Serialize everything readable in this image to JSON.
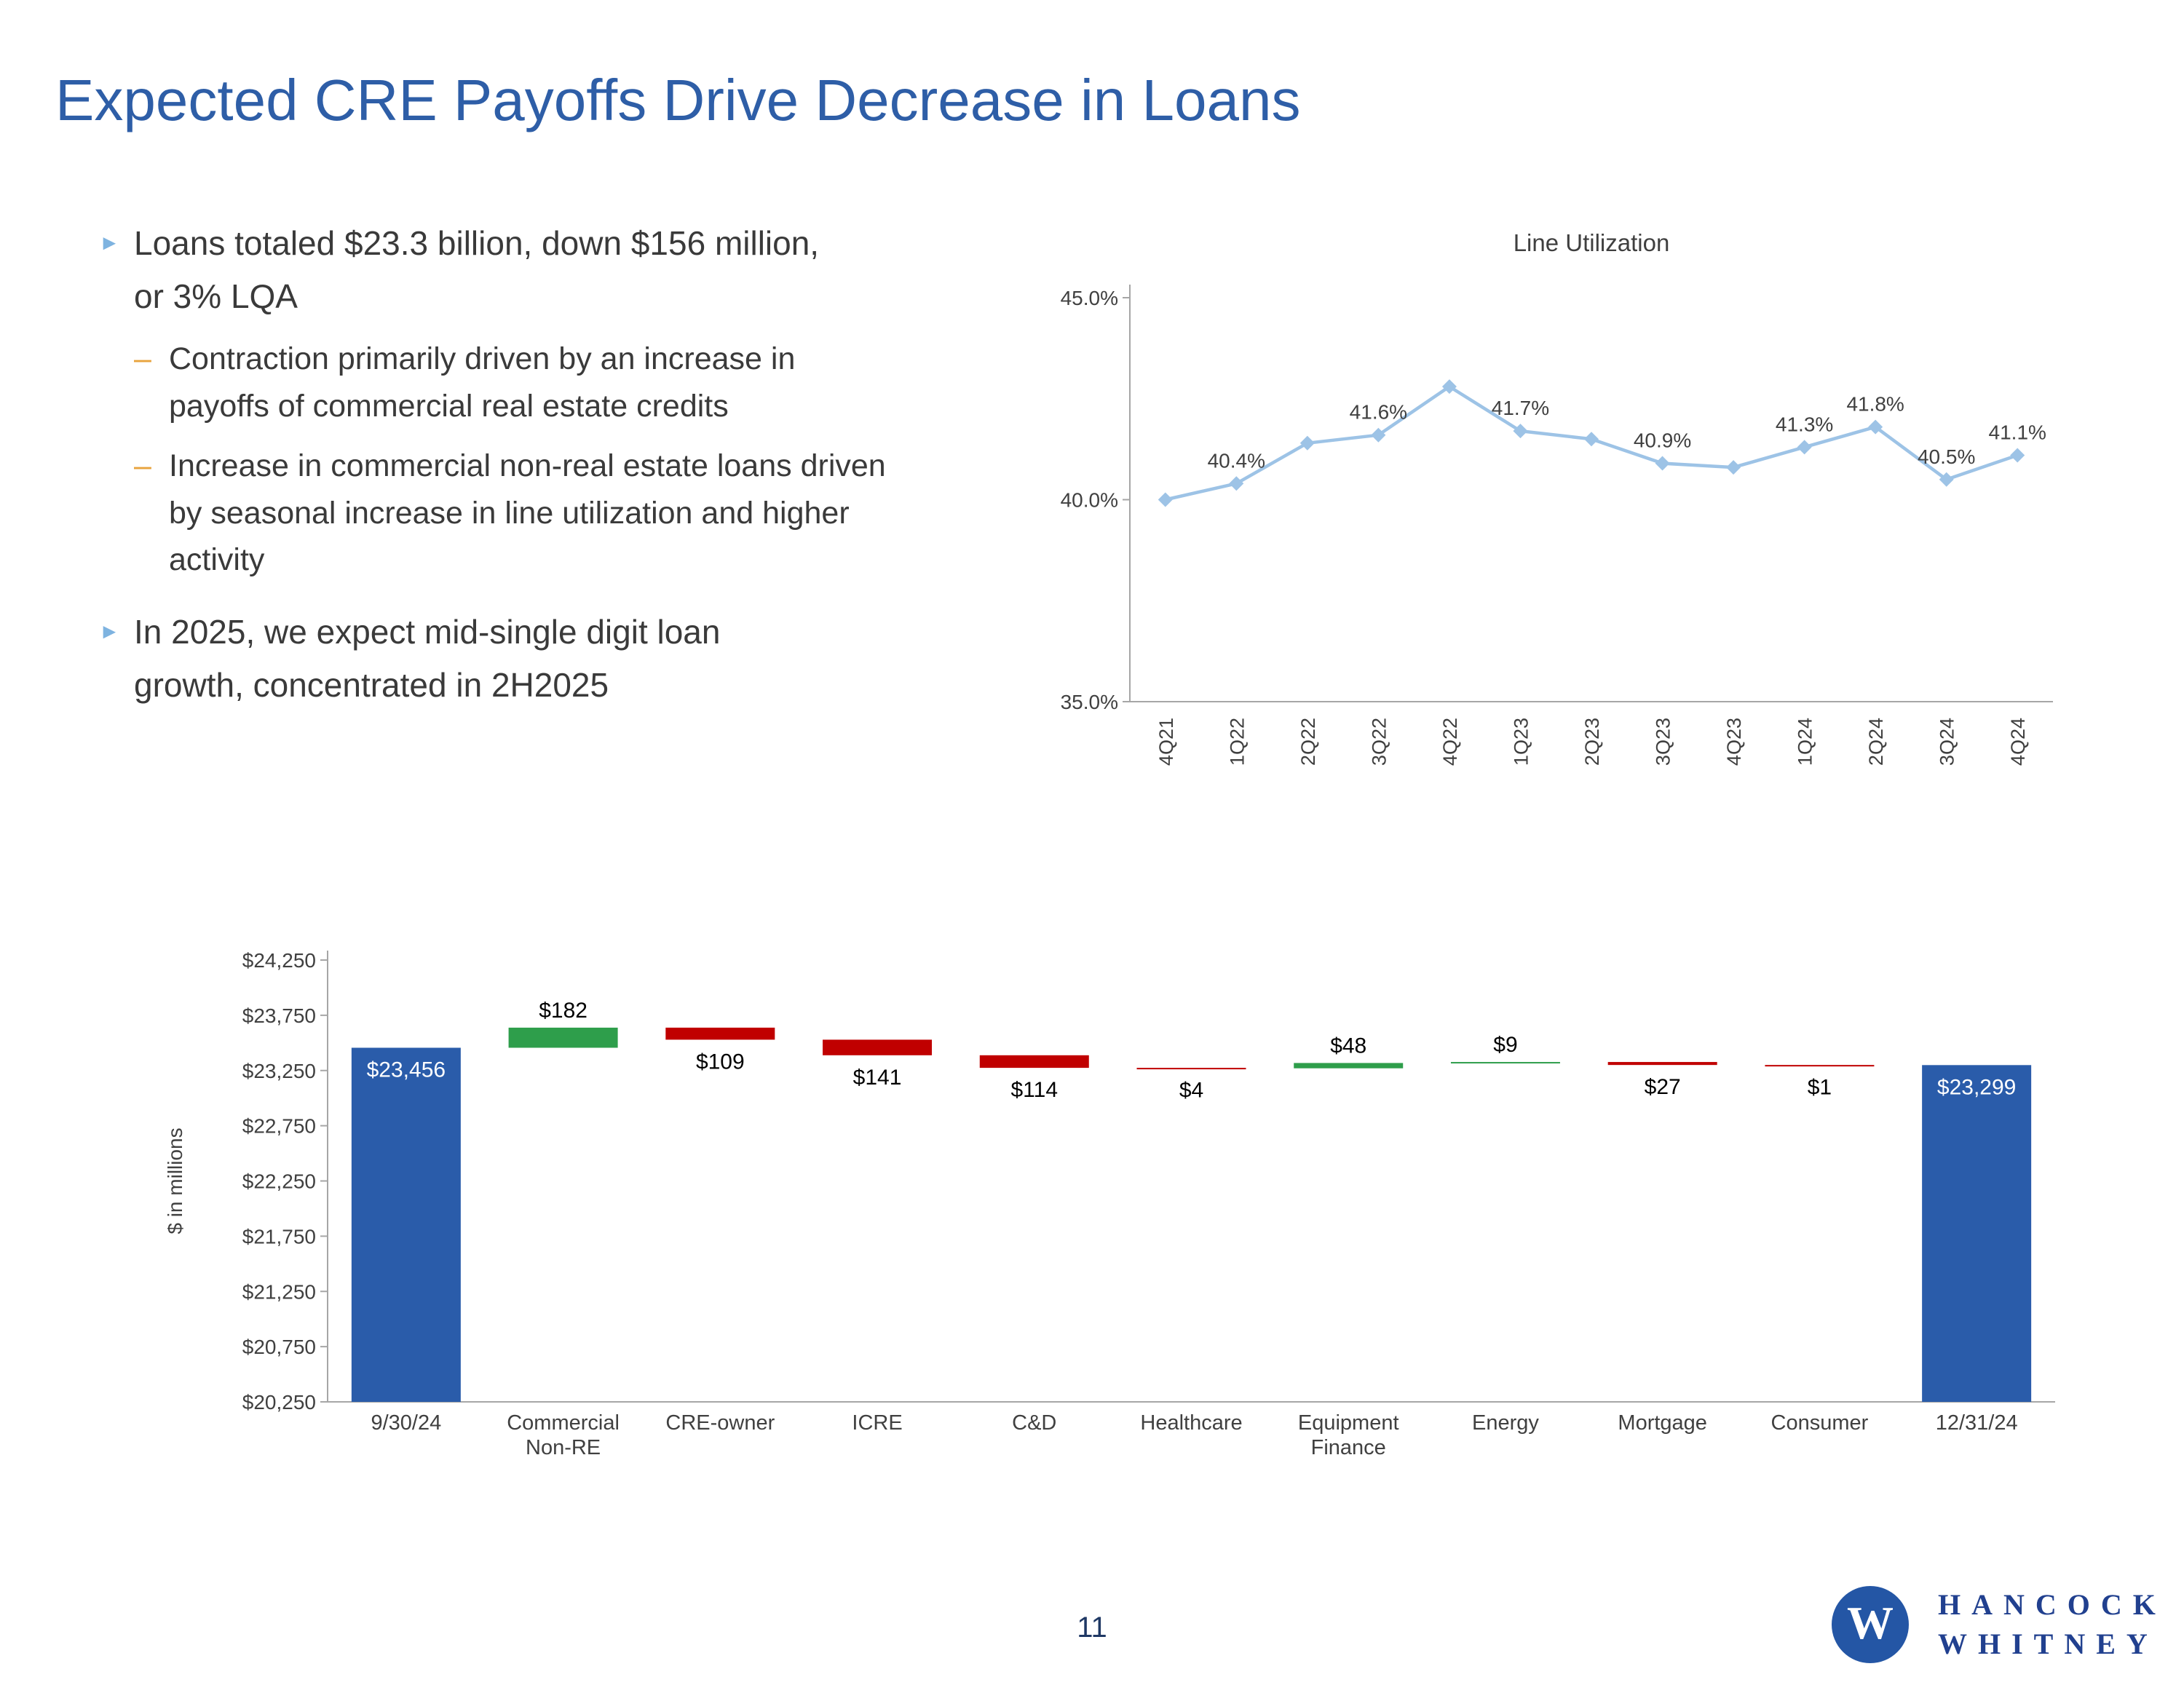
{
  "title": "Expected CRE Payoffs Drive Decrease in Loans",
  "page_number": "11",
  "icons": {
    "bullet_arrow": "►",
    "sub_bullet_dash": "–"
  },
  "colors": {
    "title_blue": "#2E5EA7",
    "bullet_arrow_blue": "#7EB3E0",
    "sub_dash_orange": "#E8A33D",
    "body_text": "#3A3A3A",
    "line_series": "#9DC3E6",
    "increase_green": "#2E9E4B",
    "decrease_red": "#C00000",
    "total_blue": "#2A5CAA",
    "axis_gray": "#A6A6A6",
    "logo_navy": "#21408F"
  },
  "bullets": [
    {
      "level": 1,
      "text": "Loans totaled $23.3 billion, down $156 million,\nor 3% LQA"
    },
    {
      "level": 2,
      "text": "Contraction primarily driven by an increase in\npayoffs of commercial real estate credits"
    },
    {
      "level": 2,
      "text": "Increase in commercial non-real estate loans driven\nby seasonal increase in line utilization and higher\nactivity"
    },
    {
      "level": 1,
      "text": "In 2025, we expect mid-single digit loan\ngrowth, concentrated in 2H2025"
    }
  ],
  "logo": {
    "monogram": "W",
    "line1": "HANCOCK",
    "line2": "WHITNEY"
  },
  "chart_data": [
    {
      "type": "line",
      "title": "Line Utilization",
      "x": [
        "4Q21",
        "1Q22",
        "2Q22",
        "3Q22",
        "4Q22",
        "1Q23",
        "2Q23",
        "3Q23",
        "4Q23",
        "1Q24",
        "2Q24",
        "3Q24",
        "4Q24"
      ],
      "values": [
        40.0,
        40.4,
        41.4,
        41.6,
        42.8,
        41.7,
        41.5,
        40.9,
        40.8,
        41.3,
        41.8,
        40.5,
        41.1
      ],
      "point_labels": [
        "",
        "40.4%",
        "",
        "41.6%",
        "",
        "41.7%",
        "",
        "40.9%",
        "",
        "41.3%",
        "41.8%",
        "40.5%",
        "41.1%"
      ],
      "ylim": [
        35.0,
        45.0
      ],
      "yticks": [
        {
          "value": 45.0,
          "label": "45.0%"
        },
        {
          "value": 40.0,
          "label": "40.0%"
        },
        {
          "value": 35.0,
          "label": "35.0%"
        }
      ],
      "grid": false,
      "legend": "none",
      "marker": "diamond",
      "color": "#9DC3E6"
    },
    {
      "type": "bar",
      "subtype": "waterfall",
      "ylabel": "$ in millions",
      "ylim": [
        20250,
        24250
      ],
      "yticks": [
        {
          "value": 24250,
          "label": "$24,250"
        },
        {
          "value": 23750,
          "label": "$23,750"
        },
        {
          "value": 23250,
          "label": "$23,250"
        },
        {
          "value": 22750,
          "label": "$22,750"
        },
        {
          "value": 22250,
          "label": "$22,250"
        },
        {
          "value": 21750,
          "label": "$21,750"
        },
        {
          "value": 21250,
          "label": "$21,250"
        },
        {
          "value": 20750,
          "label": "$20,750"
        },
        {
          "value": 20250,
          "label": "$20,250"
        }
      ],
      "bars": [
        {
          "category": "9/30/24",
          "kind": "total",
          "value": 23456,
          "label": "$23,456"
        },
        {
          "category": "Commercial\nNon-RE",
          "kind": "increase",
          "value": 182,
          "label": "$182"
        },
        {
          "category": "CRE-owner",
          "kind": "decrease",
          "value": 109,
          "label": "$109"
        },
        {
          "category": "ICRE",
          "kind": "decrease",
          "value": 141,
          "label": "$141"
        },
        {
          "category": "C&D",
          "kind": "decrease",
          "value": 114,
          "label": "$114"
        },
        {
          "category": "Healthcare",
          "kind": "decrease",
          "value": 4,
          "label": "$4"
        },
        {
          "category": "Equipment\nFinance",
          "kind": "increase",
          "value": 48,
          "label": "$48"
        },
        {
          "category": "Energy",
          "kind": "increase",
          "value": 9,
          "label": "$9"
        },
        {
          "category": "Mortgage",
          "kind": "decrease",
          "value": 27,
          "label": "$27"
        },
        {
          "category": "Consumer",
          "kind": "decrease",
          "value": 1,
          "label": "$1"
        },
        {
          "category": "12/31/24",
          "kind": "total",
          "value": 23299,
          "label": "$23,299"
        }
      ]
    }
  ]
}
